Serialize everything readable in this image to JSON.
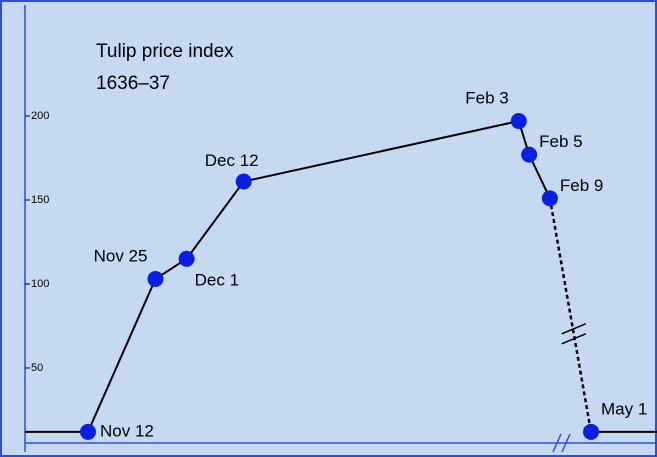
{
  "chart_data": {
    "type": "line",
    "title": "Tulip price index",
    "subtitle": "1636–37",
    "x": [
      "Nov 12",
      "Nov 25",
      "Dec 1",
      "Dec 12",
      "Feb 3",
      "Feb 5",
      "Feb 9",
      "May 1"
    ],
    "series": [
      {
        "color": "#000000",
        "marker_color": "#0a1fe0",
        "values": [
          12,
          103,
          115,
          161,
          197,
          177,
          151,
          12
        ]
      }
    ],
    "ylim": [
      0,
      265
    ],
    "yticks": [
      50,
      100,
      150,
      200
    ],
    "grid": false
  }
}
